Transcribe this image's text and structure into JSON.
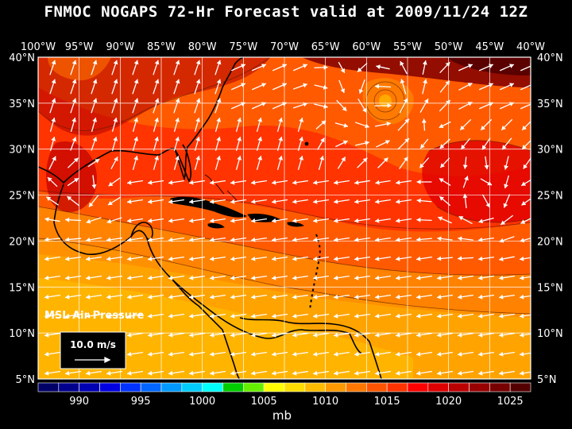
{
  "title": "FNMOC NOGAPS 72-Hr Forecast valid at 2009/11/24 12Z",
  "layer_name": "MSL Air Pressure",
  "reference_vector": "10.0 m/s",
  "units": "mb",
  "lon_labels": [
    "100°W",
    "95°W",
    "90°W",
    "85°W",
    "80°W",
    "75°W",
    "70°W",
    "65°W",
    "60°W",
    "55°W",
    "50°W",
    "45°W",
    "40°W"
  ],
  "lat_labels": [
    "40°N",
    "35°N",
    "30°N",
    "25°N",
    "20°N",
    "15°N",
    "10°N",
    "5°N"
  ],
  "colorbar": {
    "colors": [
      "#000066",
      "#00008c",
      "#0000b4",
      "#0000e0",
      "#0033ff",
      "#0066ff",
      "#0099ff",
      "#00ccff",
      "#00ffff",
      "#00cc00",
      "#66ee00",
      "#ffff00",
      "#ffdd00",
      "#ffbb00",
      "#ff9900",
      "#ff7700",
      "#ff5500",
      "#ff3300",
      "#ff0000",
      "#dd0000",
      "#bb0000",
      "#990000",
      "#770000",
      "#550000"
    ],
    "labels": [
      "990",
      "995",
      "1000",
      "1005",
      "1010",
      "1015",
      "1020",
      "1025"
    ]
  },
  "map": {
    "extent": {
      "lon_min": -100,
      "lon_max": -40,
      "lat_min": 5,
      "lat_max": 40
    },
    "pressure_bands_mb": [
      1010,
      1012,
      1014,
      1016,
      1018,
      1020,
      1022,
      1024
    ],
    "palette": {
      "1010": "#ffc800",
      "1012": "#ffb000",
      "1014": "#ff8c00",
      "1016": "#ff5a00",
      "1018": "#ff2800",
      "1020": "#e00000",
      "1022": "#b00000",
      "1024": "#800000"
    }
  }
}
